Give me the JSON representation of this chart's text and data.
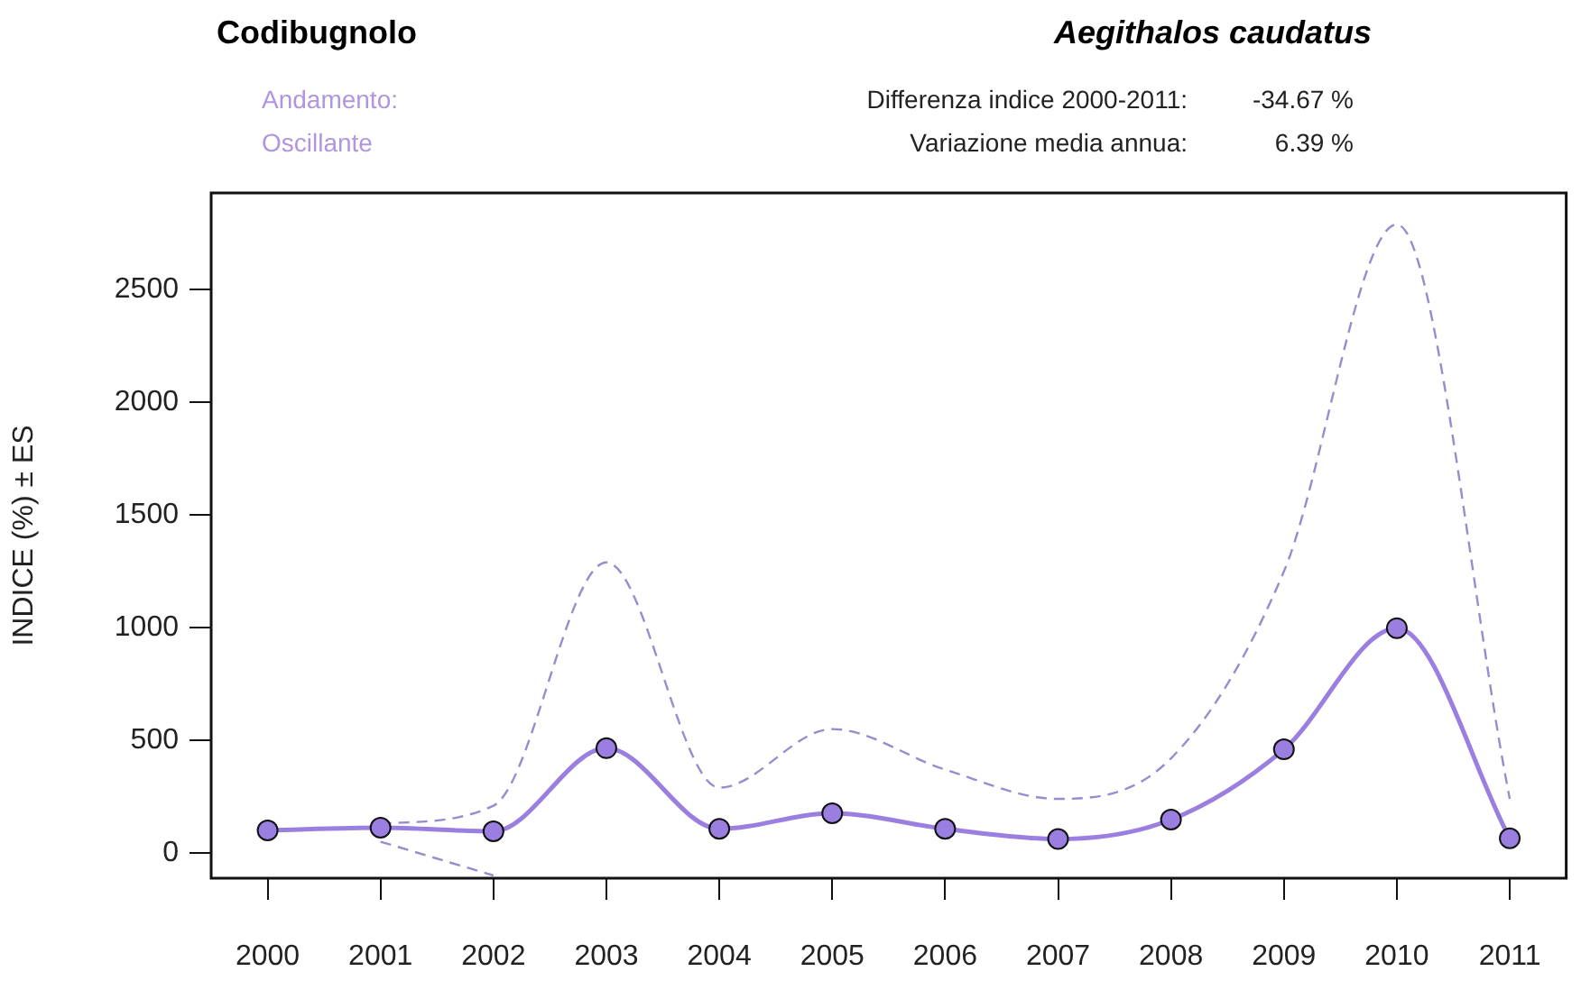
{
  "chart_data": {
    "type": "line",
    "title": "Codibugnolo",
    "subtitle": "Aegithalos caudatus",
    "ylabel": "INDICE (%) ± ES",
    "annotations": [
      "Andamento:",
      "Oscillante",
      "Differenza indice 2000-2011:",
      "-34.67 %",
      "Variazione media annua:",
      "6.39 %"
    ],
    "categories": [
      "2000",
      "2001",
      "2002",
      "2003",
      "2004",
      "2005",
      "2006",
      "2007",
      "2008",
      "2009",
      "2010",
      "2011"
    ],
    "series": [
      {
        "color": "#9b7fe0",
        "values": [
          100,
          112,
          96,
          465,
          107,
          176,
          107,
          62,
          148,
          460,
          998,
          65
        ]
      },
      {
        "color": "#9a8ad0",
        "line_style": "dashed",
        "marker": "none",
        "values": [
          null,
          130,
          210,
          1290,
          290,
          550,
          370,
          240,
          420,
          1250,
          2790,
          240
        ]
      },
      {
        "color": "#9a8ad0",
        "line_style": "dashed",
        "marker": "none",
        "values": [
          null,
          50,
          -100,
          null,
          null,
          null,
          null,
          null,
          null,
          null,
          null,
          null
        ]
      }
    ],
    "ylim": [
      -112,
      2930
    ],
    "yticks": [
      0,
      500,
      1000,
      1500,
      2000,
      2500
    ],
    "grid": false,
    "legend": false,
    "marker": "circle",
    "line_style": "solid"
  }
}
